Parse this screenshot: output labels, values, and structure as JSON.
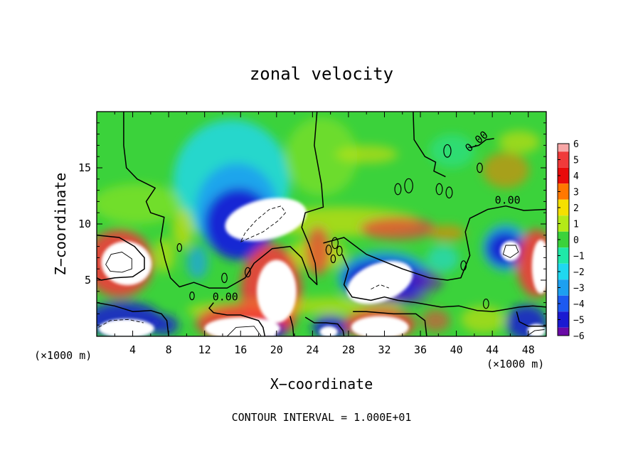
{
  "chart_data": {
    "type": "heatmap",
    "title": "zonal velocity",
    "xlabel": "X−coordinate",
    "ylabel": "Z−coordinate",
    "x_unit_label": "(×1000 m)",
    "footer": "CONTOUR INTERVAL = 1.000E+01",
    "xlim": [
      0,
      50
    ],
    "ylim": [
      0,
      20
    ],
    "x_ticks": [
      4,
      8,
      12,
      16,
      20,
      24,
      28,
      32,
      36,
      40,
      44,
      48
    ],
    "x_tick_labels": [
      "4",
      "8",
      "12",
      "16",
      "20",
      "24",
      "28",
      "32",
      "36",
      "40",
      "44",
      "48"
    ],
    "y_ticks": [
      5,
      10,
      15
    ],
    "y_tick_labels": [
      "5",
      "10",
      "15"
    ],
    "contour_labels": [
      {
        "text": "0.00",
        "x": 14.3,
        "y": 3.2
      },
      {
        "text": "0.00",
        "x": 45.7,
        "y": 11.8
      },
      {
        "text": "0.00",
        "x": 42.5,
        "y": 17.1,
        "rotate": -40
      }
    ],
    "colorbar": {
      "values": [
        6,
        5,
        4,
        3,
        2,
        1,
        0,
        -1,
        -2,
        -3,
        -4,
        -5,
        -6
      ],
      "labels": [
        "6",
        "5",
        "4",
        "3",
        "2",
        "1",
        "0",
        "−1",
        "−2",
        "−3",
        "−4",
        "−5",
        "−6"
      ],
      "colors": [
        "#f7a6a6",
        "#f03a3a",
        "#e80a0a",
        "#ff7800",
        "#f5e000",
        "#b4ea18",
        "#3bd23b",
        "#20e8a8",
        "#20d8f0",
        "#1da0f0",
        "#1c5af0",
        "#1a1ad2",
        "#6a0aa6"
      ]
    },
    "background_color": "#3bd23b",
    "blobs": [
      {
        "x": 27,
        "y": 10.2,
        "rx": 9,
        "ry": 1.3,
        "color": "#f5e000",
        "op": 0.55
      },
      {
        "x": 33.5,
        "y": 9.6,
        "rx": 4.2,
        "ry": 1.0,
        "color": "#f03a3a",
        "op": 0.7
      },
      {
        "x": 39,
        "y": 9.2,
        "rx": 2,
        "ry": 0.7,
        "color": "#ff7800",
        "op": 0.6
      },
      {
        "x": 45.5,
        "y": 14.8,
        "rx": 2.6,
        "ry": 1.6,
        "color": "#ff7800",
        "op": 0.55
      },
      {
        "x": 30,
        "y": 16.2,
        "rx": 3.5,
        "ry": 0.8,
        "color": "#f5e000",
        "op": 0.5
      },
      {
        "x": 47,
        "y": 17.3,
        "rx": 2.3,
        "ry": 1.0,
        "color": "#f5e000",
        "op": 0.5
      },
      {
        "x": 39.5,
        "y": 16.5,
        "rx": 2.5,
        "ry": 1.5,
        "color": "#20e8a8",
        "op": 0.5
      },
      {
        "x": 15,
        "y": 13.8,
        "rx": 6.5,
        "ry": 5.5,
        "color": "#20d8f0",
        "op": 0.8
      },
      {
        "x": 15.6,
        "y": 11.2,
        "rx": 4.6,
        "ry": 4.2,
        "color": "#1da0f0",
        "op": 0.9
      },
      {
        "x": 15.8,
        "y": 10.0,
        "rx": 3.8,
        "ry": 3.2,
        "color": "#1a1ad2",
        "op": 0.9
      },
      {
        "x": 9.6,
        "y": 9.6,
        "rx": 1.2,
        "ry": 1.8,
        "color": "#f5e000",
        "op": 0.55
      },
      {
        "x": 7.5,
        "y": 7.2,
        "rx": 1.2,
        "ry": 1.5,
        "color": "#f5e000",
        "op": 0.5
      },
      {
        "x": 11.2,
        "y": 6.6,
        "rx": 1.2,
        "ry": 1.5,
        "color": "#1da0f0",
        "op": 0.7
      },
      {
        "x": 24.5,
        "y": 7.3,
        "rx": 3.2,
        "ry": 1.4,
        "color": "#f5e000",
        "op": 0.6
      },
      {
        "x": 24.6,
        "y": 7.6,
        "rx": 1.4,
        "ry": 2.2,
        "color": "#f03a3a",
        "op": 0.7
      },
      {
        "x": 32,
        "y": 5.2,
        "rx": 5.2,
        "ry": 2.4,
        "color": "#1da0f0",
        "op": 0.85
      },
      {
        "x": 32,
        "y": 5.0,
        "rx": 4.5,
        "ry": 1.9,
        "color": "#1a1ad2",
        "op": 0.9
      },
      {
        "x": 34,
        "y": 3.4,
        "rx": 3,
        "ry": 0.5,
        "color": "#6a0aa6",
        "op": 0.6
      },
      {
        "x": 36.7,
        "y": 4.9,
        "rx": 1.8,
        "ry": 1.0,
        "color": "#6a0aa6",
        "op": 0.6
      },
      {
        "x": 45.5,
        "y": 7.9,
        "rx": 2.6,
        "ry": 2.1,
        "color": "#1da0f0",
        "op": 0.85
      },
      {
        "x": 45.4,
        "y": 7.8,
        "rx": 2.0,
        "ry": 1.5,
        "color": "#1a1ad2",
        "op": 0.9
      },
      {
        "x": 38.5,
        "y": 6.9,
        "rx": 1.8,
        "ry": 1.2,
        "color": "#20d8f0",
        "op": 0.55
      },
      {
        "x": 2.5,
        "y": 6.5,
        "rx": 3.8,
        "ry": 3.0,
        "color": "#f03a3a",
        "op": 0.9
      },
      {
        "x": 48.9,
        "y": 6.5,
        "rx": 2.2,
        "ry": 3.0,
        "color": "#f03a3a",
        "op": 0.9
      },
      {
        "x": 19.4,
        "y": 4.0,
        "rx": 3.4,
        "ry": 4.2,
        "color": "#f03a3a",
        "op": 0.9
      },
      {
        "x": 27,
        "y": 2.7,
        "rx": 7,
        "ry": 0.8,
        "color": "#f5e000",
        "op": 0.5
      },
      {
        "x": 16,
        "y": 2.3,
        "rx": 6,
        "ry": 0.8,
        "color": "#f5e000",
        "op": 0.55
      },
      {
        "x": 3,
        "y": 1.5,
        "rx": 4.2,
        "ry": 1.6,
        "color": "#1a1ad2",
        "op": 0.85
      },
      {
        "x": 7.5,
        "y": 1.0,
        "rx": 1.6,
        "ry": 0.9,
        "color": "#1a1ad2",
        "op": 0.8
      },
      {
        "x": 16.5,
        "y": 1.2,
        "rx": 5.5,
        "ry": 1.7,
        "color": "#f03a3a",
        "op": 0.85
      },
      {
        "x": 19.5,
        "y": 0.5,
        "rx": 1.6,
        "ry": 0.8,
        "color": "#1a1ad2",
        "op": 0.8
      },
      {
        "x": 26,
        "y": 0.8,
        "rx": 2,
        "ry": 1.1,
        "color": "#1a1ad2",
        "op": 0.85
      },
      {
        "x": 31.5,
        "y": 1.1,
        "rx": 4,
        "ry": 1.4,
        "color": "#f03a3a",
        "op": 0.85
      },
      {
        "x": 47.8,
        "y": 1.2,
        "rx": 2.3,
        "ry": 1.6,
        "color": "#1a1ad2",
        "op": 0.85
      },
      {
        "x": 37.7,
        "y": 1.4,
        "rx": 1.6,
        "ry": 1.0,
        "color": "#f03a3a",
        "op": 0.6
      },
      {
        "x": 43,
        "y": 1.5,
        "rx": 2.5,
        "ry": 1.2,
        "color": "#f5e000",
        "op": 0.5
      },
      {
        "x": 4.5,
        "y": 11.8,
        "rx": 5,
        "ry": 1.8,
        "color": "#b4ea18",
        "op": 0.45
      },
      {
        "x": 25,
        "y": 16,
        "rx": 4,
        "ry": 3.5,
        "color": "#b4ea18",
        "op": 0.4
      }
    ],
    "white_regions": [
      {
        "x": 3.3,
        "y": 6.5,
        "rx": 2.8,
        "ry": 1.95,
        "rot": 8
      },
      {
        "x": 49.4,
        "y": 6.2,
        "rx": 1.0,
        "ry": 2.4,
        "rot": 0
      },
      {
        "x": 18.8,
        "y": 10.4,
        "rx": 4.6,
        "ry": 1.8,
        "rot": -12
      },
      {
        "x": 20.0,
        "y": 4.0,
        "rx": 2.2,
        "ry": 2.8,
        "rot": 0
      },
      {
        "x": 31.5,
        "y": 4.8,
        "rx": 3.8,
        "ry": 1.7,
        "rot": -20
      },
      {
        "x": 46.0,
        "y": 7.6,
        "rx": 1.1,
        "ry": 0.9,
        "rot": 0
      },
      {
        "x": 3.3,
        "y": 0.7,
        "rx": 3.1,
        "ry": 0.85,
        "rot": 0
      },
      {
        "x": 16.2,
        "y": 0.7,
        "rx": 4.2,
        "ry": 1.0,
        "rot": 0
      },
      {
        "x": 31.5,
        "y": 0.8,
        "rx": 3.2,
        "ry": 1.0,
        "rot": 0
      },
      {
        "x": 25.8,
        "y": 0.4,
        "rx": 1.0,
        "ry": 0.5,
        "rot": 0
      },
      {
        "x": 19.5,
        "y": 0.3,
        "rx": 0.5,
        "ry": 0.4,
        "rot": 0
      },
      {
        "x": 48.9,
        "y": 0.5,
        "rx": 1.0,
        "ry": 0.6,
        "rot": 0
      }
    ],
    "zero_contours": [
      [
        [
          3,
          20
        ],
        [
          3,
          17
        ],
        [
          3.3,
          15
        ],
        [
          4.5,
          14
        ],
        [
          6.5,
          13.2
        ],
        [
          5.5,
          12
        ],
        [
          6,
          11
        ],
        [
          7.5,
          10.6
        ],
        [
          7.1,
          8.5
        ],
        [
          7.6,
          6.8
        ],
        [
          8.2,
          5.2
        ],
        [
          9.2,
          4.4
        ],
        [
          10.8,
          4.8
        ],
        [
          12.5,
          4.3
        ],
        [
          14.5,
          4.3
        ],
        [
          16.5,
          5.2
        ],
        [
          17.5,
          6.5
        ],
        [
          19.5,
          7.8
        ],
        [
          21.5,
          8.0
        ],
        [
          22.8,
          7.0
        ],
        [
          23.6,
          5.3
        ],
        [
          24.5,
          4.6
        ],
        [
          24.3,
          6.5
        ],
        [
          23.6,
          8.2
        ],
        [
          22.8,
          9.7
        ],
        [
          23.2,
          11.0
        ],
        [
          25.2,
          11.5
        ],
        [
          25,
          13.5
        ],
        [
          24.2,
          17
        ],
        [
          24.5,
          20
        ]
      ],
      [
        [
          25.2,
          8.3
        ],
        [
          27.5,
          8.8
        ],
        [
          30,
          7.3
        ],
        [
          34,
          6.0
        ],
        [
          37,
          5.2
        ],
        [
          39,
          5.0
        ],
        [
          40.5,
          5.2
        ],
        [
          41.5,
          7.2
        ],
        [
          41,
          9.3
        ],
        [
          41.5,
          10.5
        ],
        [
          43.5,
          11.3
        ],
        [
          45.5,
          11.6
        ],
        [
          47.5,
          11.2
        ],
        [
          50,
          11.3
        ]
      ],
      [
        [
          27.3,
          7.3
        ],
        [
          28,
          6.0
        ],
        [
          27.5,
          4.6
        ],
        [
          28.4,
          3.5
        ],
        [
          30.5,
          3.2
        ],
        [
          32,
          3.5
        ],
        [
          33.5,
          3.2
        ],
        [
          35.5,
          3.0
        ],
        [
          38.3,
          2.6
        ],
        [
          40.3,
          2.7
        ],
        [
          42.3,
          2.3
        ],
        [
          44,
          2.2
        ],
        [
          45.5,
          2.4
        ],
        [
          47,
          2.6
        ],
        [
          48.5,
          2.7
        ],
        [
          50,
          2.6
        ]
      ],
      [
        [
          0,
          3.0
        ],
        [
          2,
          2.7
        ],
        [
          4,
          2.2
        ],
        [
          6,
          2.3
        ],
        [
          7.2,
          2.0
        ],
        [
          7.8,
          1.4
        ],
        [
          8.0,
          0
        ]
      ],
      [
        [
          13,
          3.0
        ],
        [
          12.5,
          2.5
        ],
        [
          13,
          2.1
        ],
        [
          14.5,
          1.9
        ],
        [
          16,
          1.9
        ],
        [
          18,
          1.4
        ],
        [
          18.5,
          0.8
        ],
        [
          18.7,
          0
        ]
      ],
      [
        [
          21.5,
          1.8
        ],
        [
          21.8,
          0.9
        ],
        [
          21.9,
          0
        ]
      ],
      [
        [
          23.2,
          1.7
        ],
        [
          24.2,
          1.2
        ],
        [
          25.5,
          1.2
        ],
        [
          26.8,
          1.1
        ],
        [
          27.4,
          0.5
        ],
        [
          27.5,
          0
        ]
      ],
      [
        [
          28.5,
          2.2
        ],
        [
          30,
          2.2
        ],
        [
          33,
          2.0
        ],
        [
          35.5,
          2.0
        ],
        [
          36.5,
          1.4
        ],
        [
          36.7,
          0
        ]
      ],
      [
        [
          46.7,
          2.2
        ],
        [
          47,
          1.3
        ],
        [
          48,
          0.9
        ],
        [
          50,
          0.9
        ]
      ],
      [
        [
          35.2,
          20
        ],
        [
          35.3,
          17.5
        ],
        [
          36.5,
          16
        ],
        [
          37.7,
          15.5
        ],
        [
          37.5,
          14.7
        ],
        [
          38.8,
          14.2
        ]
      ],
      [
        [
          41.5,
          16.8
        ],
        [
          42.5,
          17.0
        ],
        [
          43.3,
          17.5
        ],
        [
          44.2,
          17.6
        ]
      ],
      [
        [
          0,
          9.0
        ],
        [
          2.5,
          8.8
        ],
        [
          4.2,
          8.0
        ],
        [
          5.3,
          7.0
        ],
        [
          5.3,
          6.0
        ],
        [
          4.0,
          5.3
        ],
        [
          2.0,
          5.2
        ],
        [
          0.5,
          5.0
        ],
        [
          0,
          5.2
        ]
      ]
    ],
    "neg_contours": [
      [
        [
          16,
          8.4
        ],
        [
          18.5,
          9.3
        ],
        [
          20.2,
          10.3
        ],
        [
          21.0,
          11.0
        ],
        [
          20.5,
          11.6
        ],
        [
          19.2,
          11.3
        ],
        [
          17.7,
          10.3
        ],
        [
          16.5,
          9.2
        ],
        [
          16,
          8.4
        ]
      ],
      [
        [
          0.2,
          0.8
        ],
        [
          1.5,
          1.4
        ],
        [
          3.5,
          1.5
        ],
        [
          5.2,
          1.2
        ]
      ],
      [
        [
          30.5,
          4.2
        ],
        [
          31.5,
          4.6
        ],
        [
          32.5,
          4.3
        ]
      ]
    ],
    "thin_contours": [
      [
        [
          1.0,
          6.4
        ],
        [
          1.5,
          5.8
        ],
        [
          2.8,
          5.7
        ],
        [
          3.9,
          6.0
        ],
        [
          3.9,
          6.9
        ],
        [
          2.8,
          7.5
        ],
        [
          1.6,
          7.3
        ],
        [
          1.0,
          6.4
        ]
      ],
      [
        [
          45.2,
          7.3
        ],
        [
          46.0,
          7.0
        ],
        [
          46.9,
          7.5
        ],
        [
          46.6,
          8.1
        ],
        [
          45.5,
          8.1
        ],
        [
          45.2,
          7.3
        ]
      ],
      [
        [
          14.5,
          0
        ],
        [
          15.5,
          0.8
        ],
        [
          17.5,
          0.9
        ],
        [
          18.3,
          0
        ]
      ],
      [
        [
          47.8,
          0
        ],
        [
          48.7,
          0.5
        ],
        [
          49.8,
          0.6
        ]
      ]
    ],
    "small_loops": [
      {
        "x": 26.5,
        "y": 8.3,
        "r": 0.35
      },
      {
        "x": 27.0,
        "y": 7.6,
        "r": 0.3
      },
      {
        "x": 25.8,
        "y": 7.7,
        "r": 0.3
      },
      {
        "x": 26.3,
        "y": 6.9,
        "r": 0.25
      },
      {
        "x": 33.5,
        "y": 13.1,
        "r": 0.35
      },
      {
        "x": 34.7,
        "y": 13.4,
        "r": 0.45
      },
      {
        "x": 38.1,
        "y": 13.1,
        "r": 0.35
      },
      {
        "x": 39.2,
        "y": 12.8,
        "r": 0.35
      },
      {
        "x": 43.3,
        "y": 2.9,
        "r": 0.3
      },
      {
        "x": 14.2,
        "y": 5.2,
        "r": 0.3
      },
      {
        "x": 16.8,
        "y": 5.7,
        "r": 0.3
      },
      {
        "x": 10.6,
        "y": 3.6,
        "r": 0.25
      },
      {
        "x": 42.6,
        "y": 15.0,
        "r": 0.3
      },
      {
        "x": 39.0,
        "y": 16.5,
        "r": 0.4
      },
      {
        "x": 9.2,
        "y": 7.9,
        "r": 0.25
      },
      {
        "x": 40.8,
        "y": 6.3,
        "r": 0.3
      }
    ]
  }
}
